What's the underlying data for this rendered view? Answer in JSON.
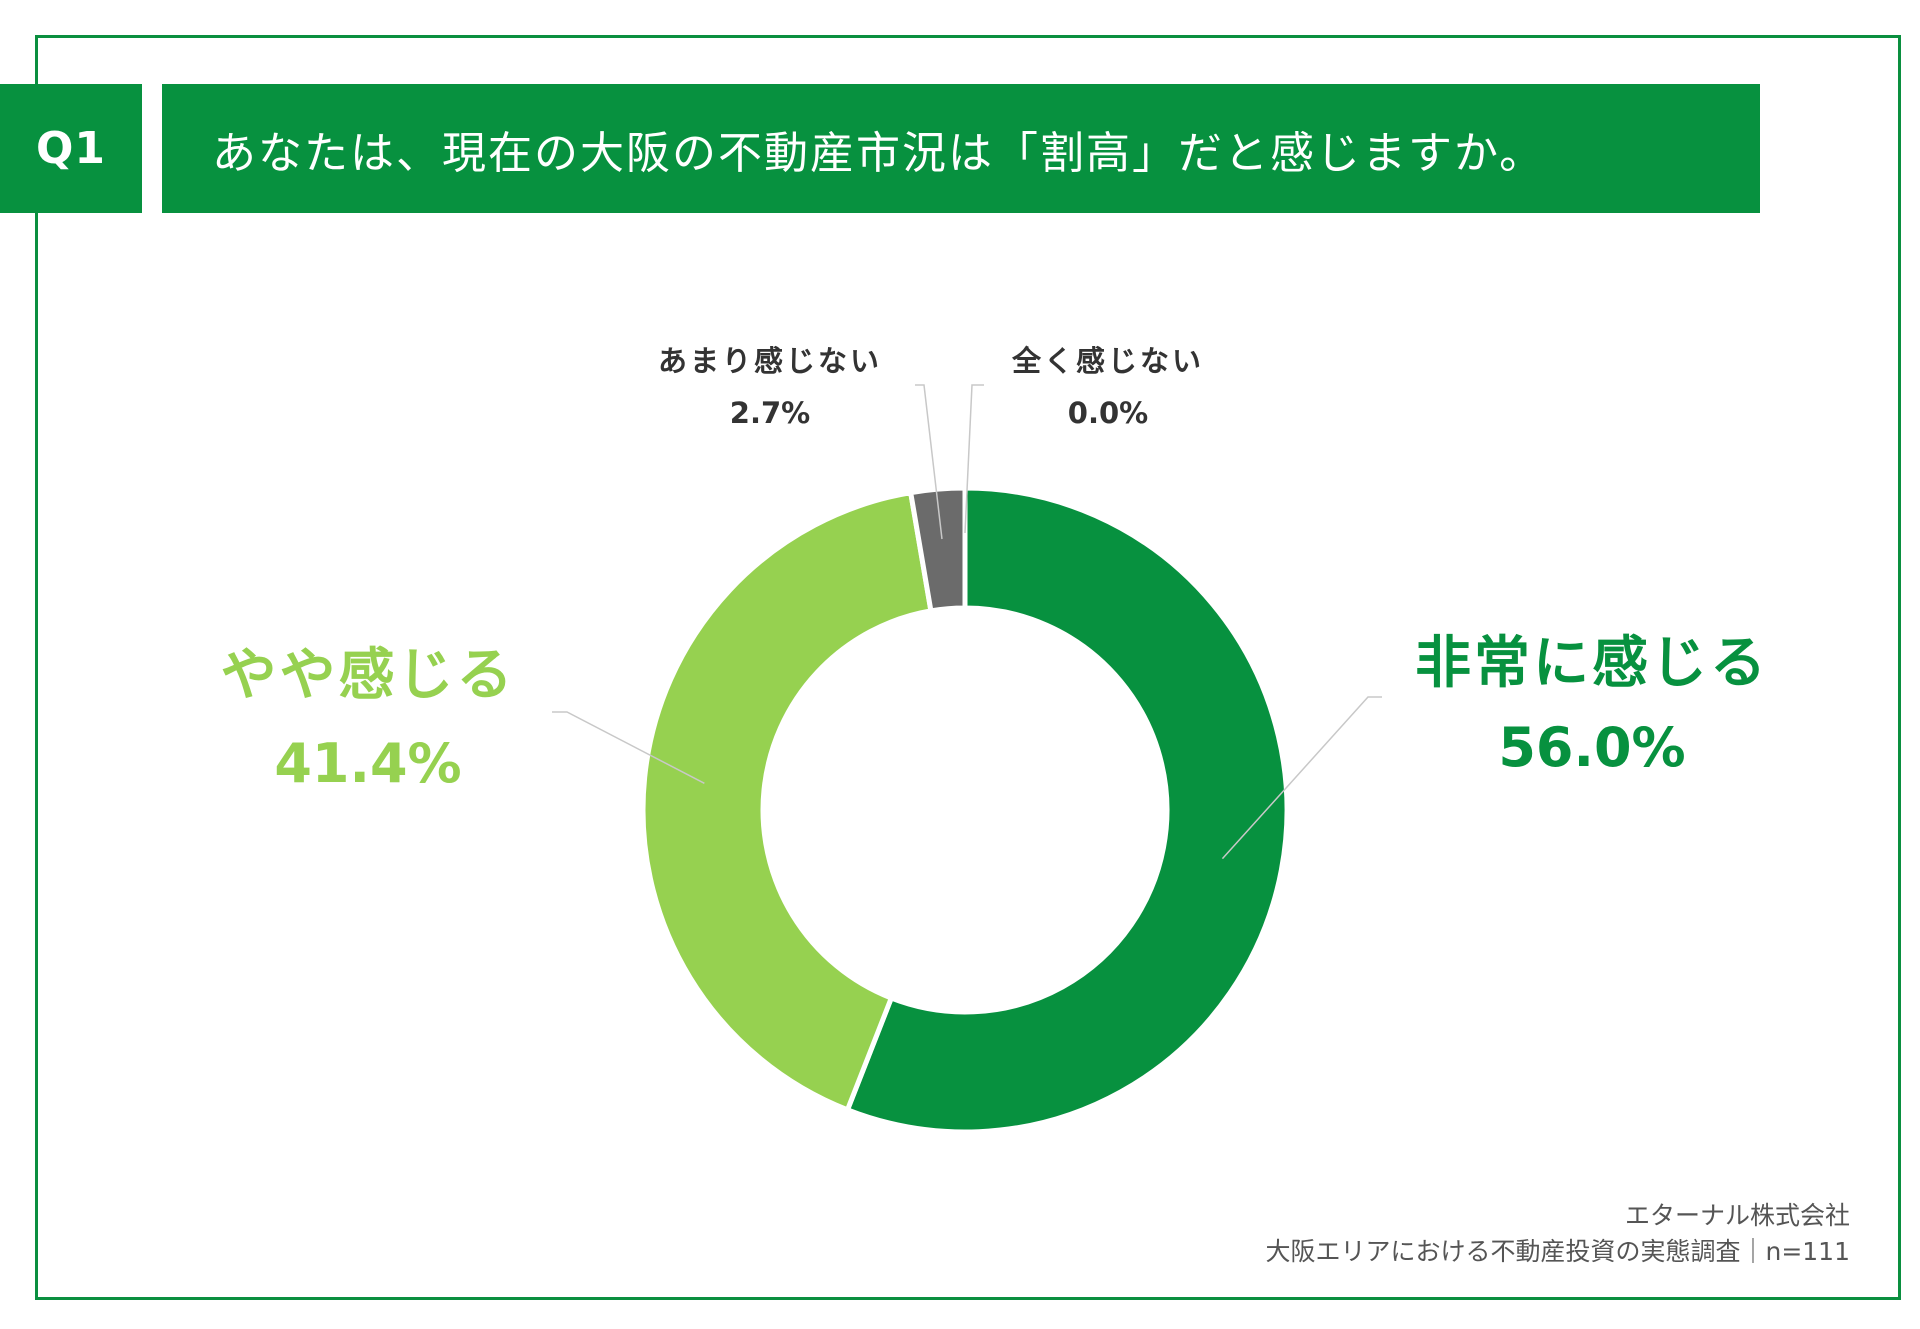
{
  "header": {
    "question_no": "Q1",
    "question_text": "あなたは、現在の大阪の不動産市況は「割高」だと感じますか。"
  },
  "chart_data": {
    "type": "pie",
    "title": "あなたは、現在の大阪の不動産市況は「割高」だと感じますか。",
    "categories": [
      "非常に感じる",
      "やや感じる",
      "あまり感じない",
      "全く感じない"
    ],
    "values": [
      56.0,
      41.4,
      2.7,
      0.0
    ],
    "value_labels": [
      "56.0%",
      "41.4%",
      "2.7%",
      "0.0%"
    ],
    "colors": [
      "#07913f",
      "#96d150",
      "#6b6b6b",
      "#bfbfbf"
    ],
    "donut": true
  },
  "footer": {
    "company": "エターナル株式会社",
    "survey": "大阪エリアにおける不動産投資の実態調査｜n=111"
  }
}
